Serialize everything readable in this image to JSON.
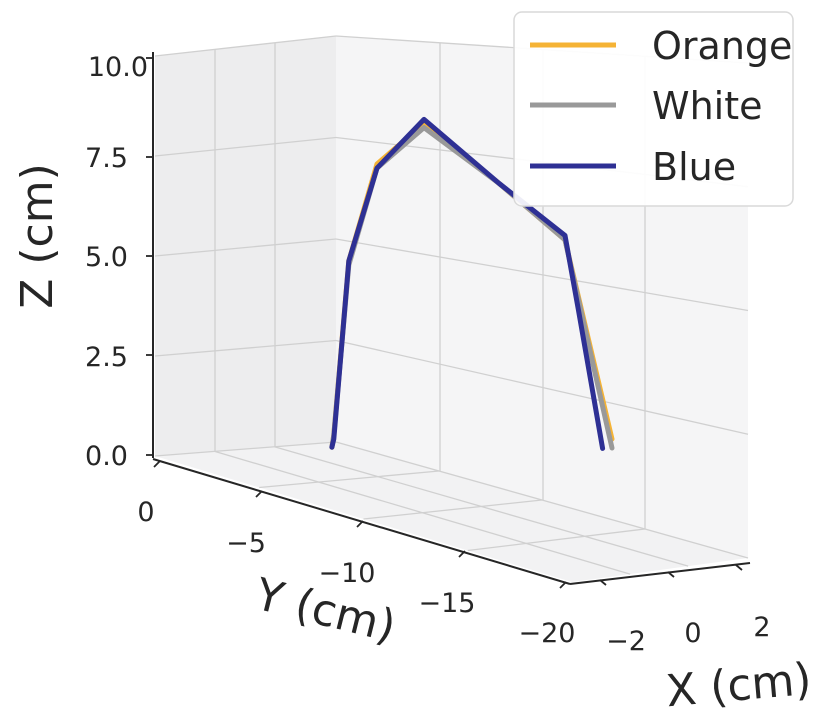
{
  "chart_data": {
    "type": "line",
    "projection": "3d",
    "xlabel": "X (cm)",
    "ylabel": "Y (cm)",
    "zlabel": "Z (cm)",
    "x_ticks": [
      "−2",
      "0",
      "2"
    ],
    "y_ticks": [
      "0",
      "−5",
      "−10",
      "−15",
      "−20"
    ],
    "z_ticks": [
      "0.0",
      "2.5",
      "5.0",
      "7.5",
      "10.0"
    ],
    "zlim": [
      0,
      10
    ],
    "grid": true,
    "legend_position": "top-right",
    "series": [
      {
        "name": "Orange",
        "color": "#f5b335",
        "points": [
          {
            "y": -5.1,
            "z": 0.3
          },
          {
            "y": -5.2,
            "z": 0.6
          },
          {
            "y": -6.0,
            "z": 4.9
          },
          {
            "y": -7.5,
            "z": 7.2
          },
          {
            "y": -10.0,
            "z": 8.0
          },
          {
            "y": -14.0,
            "z": 6.3
          },
          {
            "y": -17.5,
            "z": 4.8
          },
          {
            "y": -20.0,
            "z": 0.2
          }
        ]
      },
      {
        "name": "White",
        "color": "#999999",
        "points": [
          {
            "y": -5.1,
            "z": 0.3
          },
          {
            "y": -5.2,
            "z": 0.6
          },
          {
            "y": -6.0,
            "z": 4.8
          },
          {
            "y": -7.5,
            "z": 7.1
          },
          {
            "y": -10.0,
            "z": 7.9
          },
          {
            "y": -14.0,
            "z": 6.3
          },
          {
            "y": -17.5,
            "z": 4.8
          },
          {
            "y": -20.0,
            "z": 0.0
          }
        ]
      },
      {
        "name": "Blue",
        "color": "#2e3094",
        "points": [
          {
            "y": -5.1,
            "z": 0.3
          },
          {
            "y": -5.2,
            "z": 0.5
          },
          {
            "y": -6.0,
            "z": 4.9
          },
          {
            "y": -7.5,
            "z": 7.1
          },
          {
            "y": -10.0,
            "z": 8.1
          },
          {
            "y": -14.0,
            "z": 6.3
          },
          {
            "y": -17.5,
            "z": 4.9
          },
          {
            "y": -18.2,
            "z": 3.2
          },
          {
            "y": -19.5,
            "z": 0.0
          }
        ]
      }
    ]
  }
}
